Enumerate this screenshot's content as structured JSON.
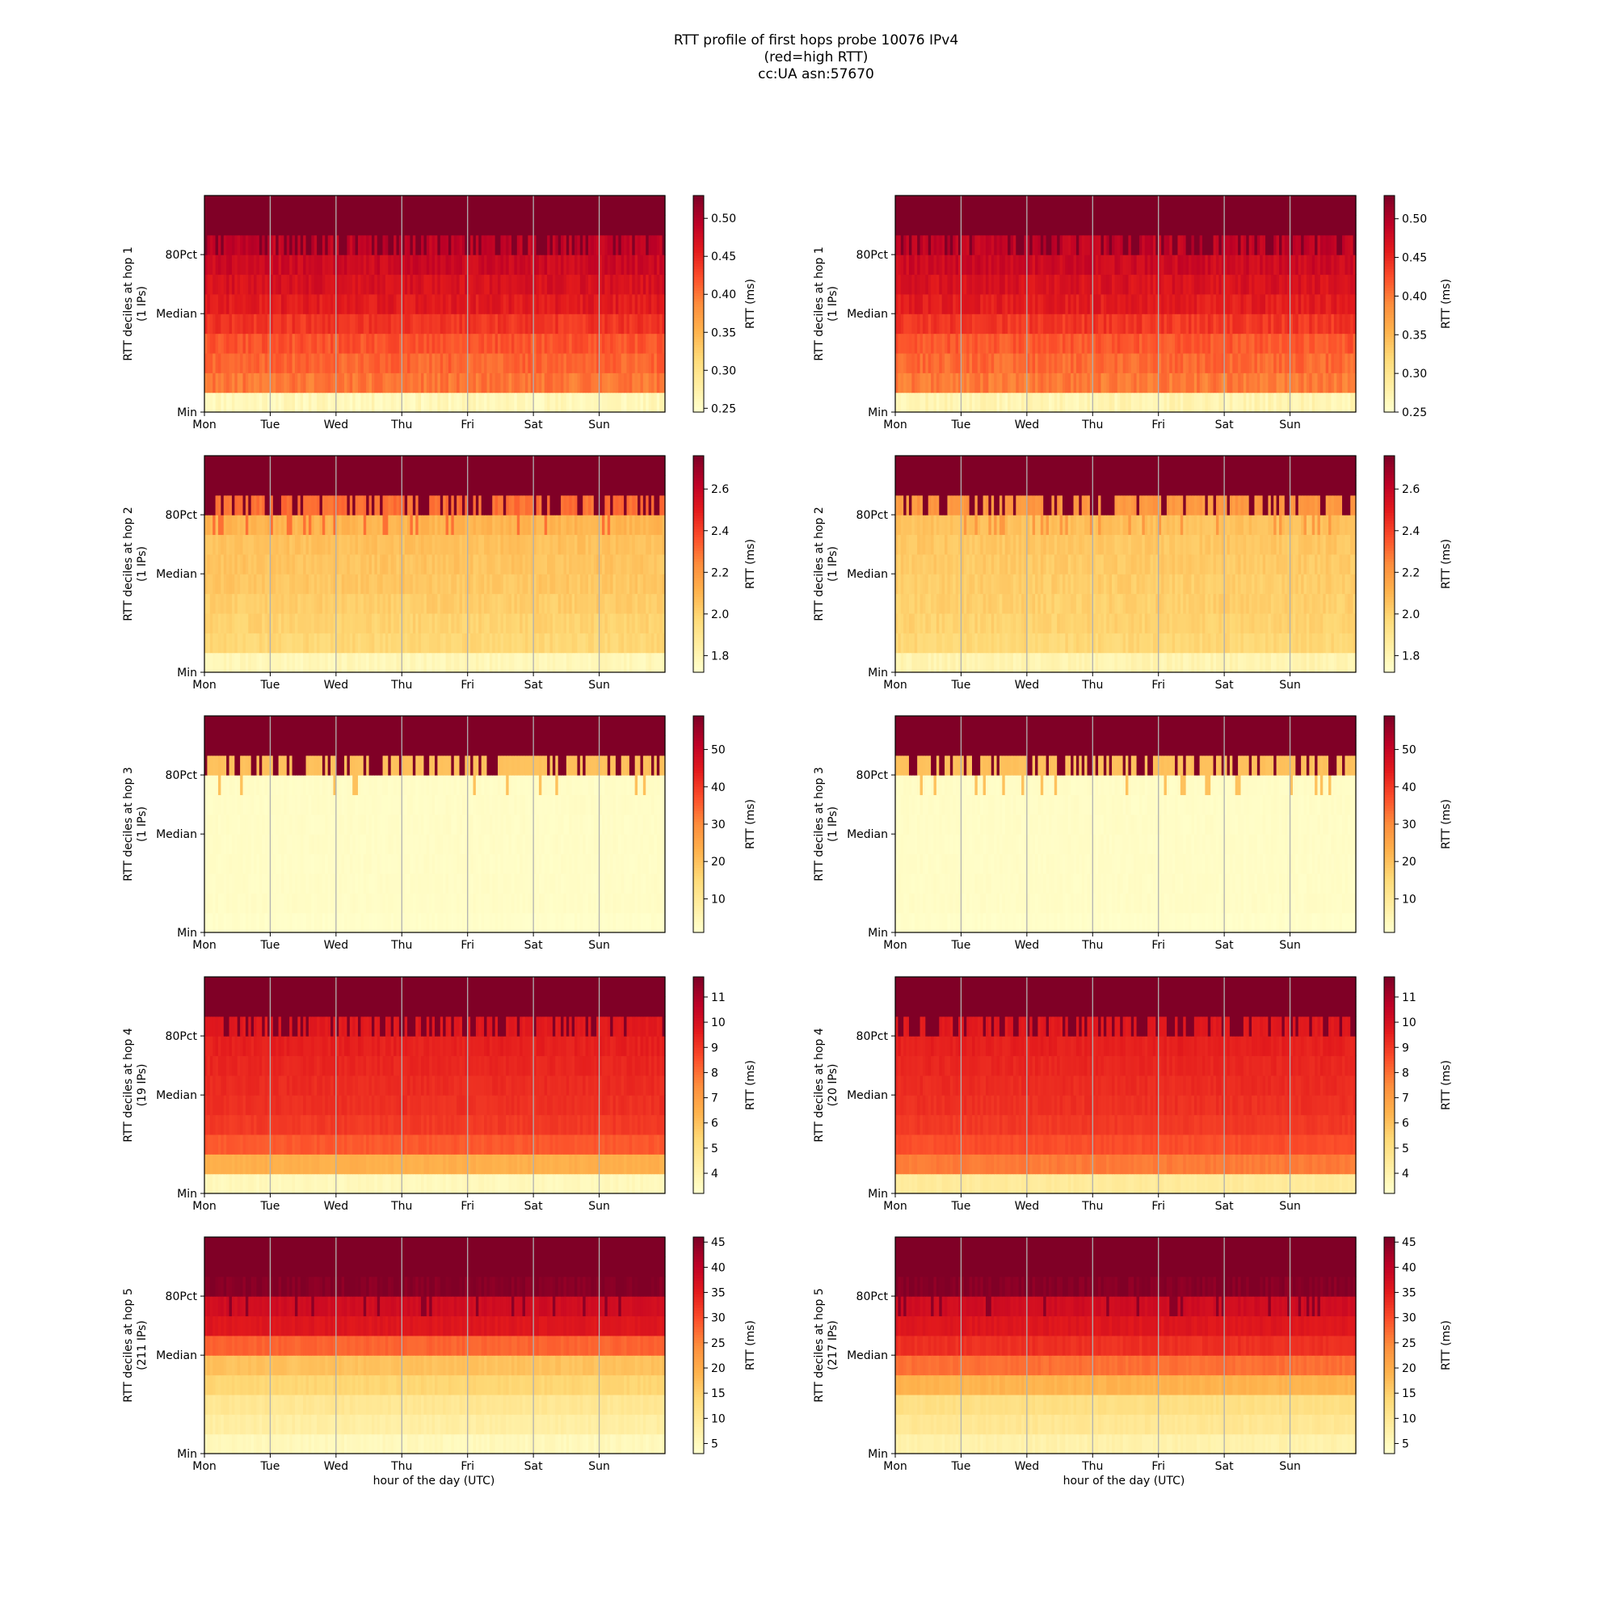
{
  "figure": {
    "title_lines": [
      "RTT profile of first hops probe 10076 IPv4",
      "(red=high RTT)",
      "cc:UA asn:57670"
    ],
    "x_axis_label": "hour of the day (UTC)",
    "colormap": "YlOrRd",
    "colormap_stops": [
      "#ffffcc",
      "#ffeda0",
      "#fed976",
      "#feb24c",
      "#fd8d3c",
      "#fc4e2a",
      "#e31a1c",
      "#bd0026",
      "#800026"
    ]
  },
  "chart_data": [
    {
      "type": "heatmap",
      "panel": "hop1-left",
      "ylabel": [
        "RTT deciles at hop 1",
        "(1 IPs)"
      ],
      "x_ticks": [
        "Mon",
        "Tue",
        "Wed",
        "Thu",
        "Fri",
        "Sat",
        "Sun"
      ],
      "y_ticks": [
        "Min",
        "Median",
        "80Pct"
      ],
      "colorbar": {
        "label": "RTT (ms)",
        "range": [
          0.245,
          0.53
        ],
        "ticks": [
          "0.25",
          "0.30",
          "0.35",
          "0.40",
          "0.45",
          "0.50"
        ]
      },
      "decile_levels": [
        0.26,
        0.4,
        0.41,
        0.42,
        0.44,
        0.46,
        0.47,
        0.48,
        0.49,
        0.55
      ],
      "noise": 0.012,
      "seed": 11
    },
    {
      "type": "heatmap",
      "panel": "hop1-right",
      "ylabel": [
        "RTT deciles at hop 1",
        "(1 IPs)"
      ],
      "x_ticks": [
        "Mon",
        "Tue",
        "Wed",
        "Thu",
        "Fri",
        "Sat",
        "Sun"
      ],
      "y_ticks": [
        "Min",
        "Median",
        "80Pct"
      ],
      "colorbar": {
        "label": "RTT (ms)",
        "range": [
          0.25,
          0.53
        ],
        "ticks": [
          "0.25",
          "0.30",
          "0.35",
          "0.40",
          "0.45",
          "0.50"
        ]
      },
      "decile_levels": [
        0.27,
        0.4,
        0.41,
        0.42,
        0.44,
        0.46,
        0.47,
        0.48,
        0.49,
        0.55
      ],
      "noise": 0.012,
      "seed": 12
    },
    {
      "type": "heatmap",
      "panel": "hop2-left",
      "ylabel": [
        "RTT deciles at hop 2",
        "(1 IPs)"
      ],
      "x_ticks": [
        "Mon",
        "Tue",
        "Wed",
        "Thu",
        "Fri",
        "Sat",
        "Sun"
      ],
      "y_ticks": [
        "Min",
        "Median",
        "80Pct"
      ],
      "colorbar": {
        "label": "RTT (ms)",
        "range": [
          1.72,
          2.76
        ],
        "ticks": [
          "1.8",
          "2.0",
          "2.2",
          "2.4",
          "2.6"
        ]
      },
      "decile_levels": [
        1.78,
        1.98,
        2.0,
        2.02,
        2.04,
        2.05,
        2.06,
        2.1,
        2.3,
        2.8
      ],
      "noise": 0.03,
      "seed": 21
    },
    {
      "type": "heatmap",
      "panel": "hop2-right",
      "ylabel": [
        "RTT deciles at hop 2",
        "(1 IPs)"
      ],
      "x_ticks": [
        "Mon",
        "Tue",
        "Wed",
        "Thu",
        "Fri",
        "Sat",
        "Sun"
      ],
      "y_ticks": [
        "Min",
        "Median",
        "80Pct"
      ],
      "colorbar": {
        "label": "RTT (ms)",
        "range": [
          1.72,
          2.76
        ],
        "ticks": [
          "1.8",
          "2.0",
          "2.2",
          "2.4",
          "2.6"
        ]
      },
      "decile_levels": [
        1.8,
        1.98,
        2.0,
        2.01,
        2.02,
        2.03,
        2.04,
        2.06,
        2.2,
        2.8
      ],
      "noise": 0.03,
      "seed": 22
    },
    {
      "type": "heatmap",
      "panel": "hop3-left",
      "ylabel": [
        "RTT deciles at hop 3",
        "(1 IPs)"
      ],
      "x_ticks": [
        "Mon",
        "Tue",
        "Wed",
        "Thu",
        "Fri",
        "Sat",
        "Sun"
      ],
      "y_ticks": [
        "Min",
        "Median",
        "80Pct"
      ],
      "colorbar": {
        "label": "RTT (ms)",
        "range": [
          1.0,
          59.0
        ],
        "ticks": [
          "10",
          "20",
          "30",
          "40",
          "50"
        ]
      },
      "decile_levels": [
        1.5,
        2,
        2,
        2,
        2,
        2,
        2,
        2,
        20,
        60
      ],
      "noise": 0.5,
      "seed": 31
    },
    {
      "type": "heatmap",
      "panel": "hop3-right",
      "ylabel": [
        "RTT deciles at hop 3",
        "(1 IPs)"
      ],
      "x_ticks": [
        "Mon",
        "Tue",
        "Wed",
        "Thu",
        "Fri",
        "Sat",
        "Sun"
      ],
      "y_ticks": [
        "Min",
        "Median",
        "80Pct"
      ],
      "colorbar": {
        "label": "RTT (ms)",
        "range": [
          1.0,
          59.0
        ],
        "ticks": [
          "10",
          "20",
          "30",
          "40",
          "50"
        ]
      },
      "decile_levels": [
        1.5,
        2,
        2,
        2,
        2,
        2,
        2,
        2,
        20,
        60
      ],
      "noise": 0.5,
      "seed": 32
    },
    {
      "type": "heatmap",
      "panel": "hop4-left",
      "ylabel": [
        "RTT deciles at hop 4",
        "(19 IPs)"
      ],
      "x_ticks": [
        "Mon",
        "Tue",
        "Wed",
        "Thu",
        "Fri",
        "Sat",
        "Sun"
      ],
      "y_ticks": [
        "Min",
        "Median",
        "80Pct"
      ],
      "colorbar": {
        "label": "RTT (ms)",
        "range": [
          3.2,
          11.8
        ],
        "ticks": [
          "4",
          "5",
          "6",
          "7",
          "8",
          "9",
          "10",
          "11"
        ]
      },
      "decile_levels": [
        3.6,
        6.5,
        8.4,
        9.0,
        9.2,
        9.3,
        9.4,
        9.5,
        9.7,
        12
      ],
      "noise": 0.15,
      "seed": 41
    },
    {
      "type": "heatmap",
      "panel": "hop4-right",
      "ylabel": [
        "RTT deciles at hop 4",
        "(20 IPs)"
      ],
      "x_ticks": [
        "Mon",
        "Tue",
        "Wed",
        "Thu",
        "Fri",
        "Sat",
        "Sun"
      ],
      "y_ticks": [
        "Min",
        "Median",
        "80Pct"
      ],
      "colorbar": {
        "label": "RTT (ms)",
        "range": [
          3.2,
          11.8
        ],
        "ticks": [
          "4",
          "5",
          "6",
          "7",
          "8",
          "9",
          "10",
          "11"
        ]
      },
      "decile_levels": [
        4.4,
        7.8,
        8.6,
        9.0,
        9.2,
        9.3,
        9.4,
        9.5,
        9.7,
        12
      ],
      "noise": 0.15,
      "seed": 42
    },
    {
      "type": "heatmap",
      "panel": "hop5-left",
      "ylabel": [
        "RTT deciles at hop 5",
        "(211 IPs)"
      ],
      "x_ticks": [
        "Mon",
        "Tue",
        "Wed",
        "Thu",
        "Fri",
        "Sat",
        "Sun"
      ],
      "y_ticks": [
        "Min",
        "Median",
        "80Pct"
      ],
      "colorbar": {
        "label": "RTT (ms)",
        "range": [
          3.0,
          46.0
        ],
        "ticks": [
          "5",
          "10",
          "15",
          "20",
          "25",
          "30",
          "35",
          "40",
          "45"
        ]
      },
      "decile_levels": [
        5,
        8,
        10,
        14,
        17,
        28,
        36,
        38,
        45,
        48
      ],
      "noise": 0.8,
      "seed": 51
    },
    {
      "type": "heatmap",
      "panel": "hop5-right",
      "ylabel": [
        "RTT deciles at hop 5",
        "(217 IPs)"
      ],
      "x_ticks": [
        "Mon",
        "Tue",
        "Wed",
        "Thu",
        "Fri",
        "Sat",
        "Sun"
      ],
      "y_ticks": [
        "Min",
        "Median",
        "80Pct"
      ],
      "colorbar": {
        "label": "RTT (ms)",
        "range": [
          3.0,
          46.0
        ],
        "ticks": [
          "5",
          "10",
          "15",
          "20",
          "25",
          "30",
          "35",
          "40",
          "45"
        ]
      },
      "decile_levels": [
        7,
        10,
        12,
        19,
        27,
        33,
        36,
        38,
        45,
        48
      ],
      "noise": 0.8,
      "seed": 52
    }
  ]
}
